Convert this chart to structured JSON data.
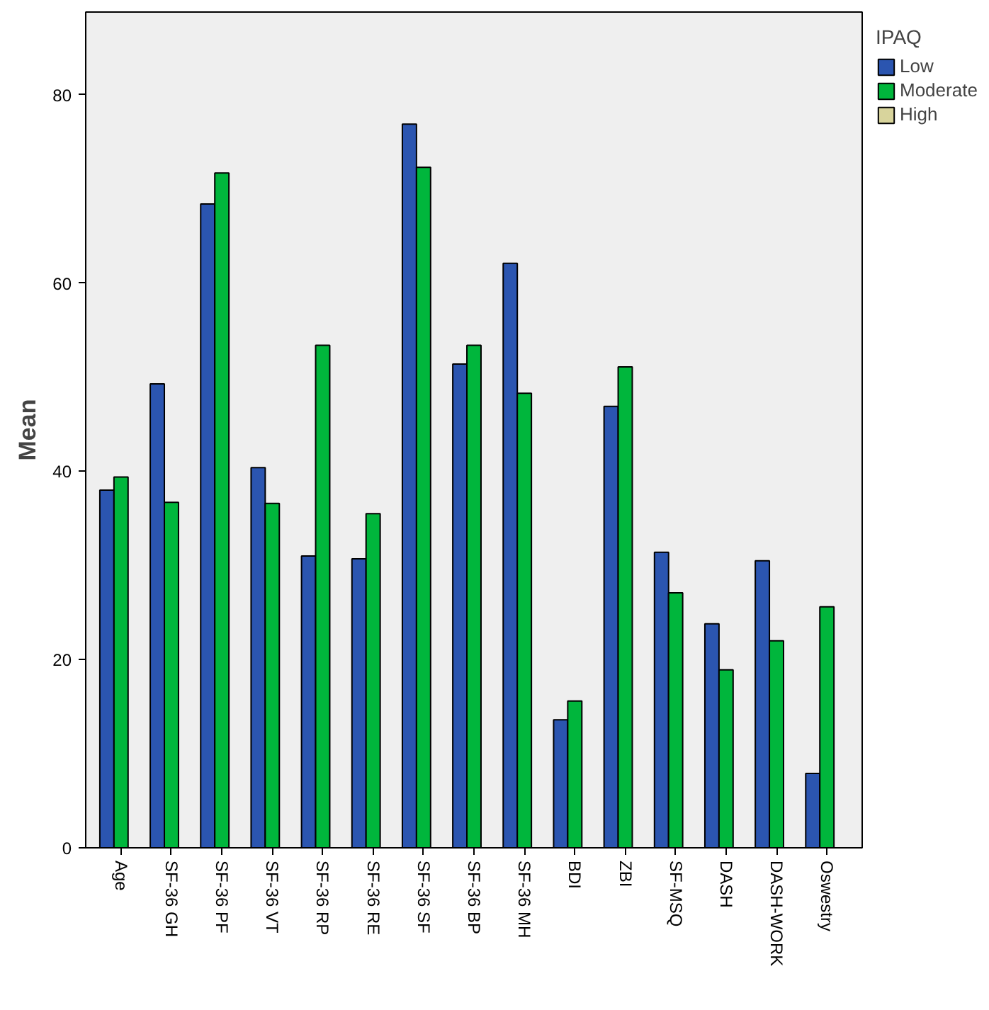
{
  "chart_data": {
    "type": "bar",
    "ylabel": "Mean",
    "legend_title": "IPAQ",
    "categories": [
      "Age",
      "SF-36 GH",
      "SF-36 PF",
      "SF-36 VT",
      "SF-36 RP",
      "SF-36 RE",
      "SF-36 SF",
      "SF-36 BP",
      "SF-36 MH",
      "BDI",
      "ZBI",
      "SF-MSQ",
      "DASH",
      "DASH-WORK",
      "Oswestry"
    ],
    "series": [
      {
        "name": "Low",
        "color": "#2b55b0",
        "values": [
          38.0,
          49.3,
          68.4,
          40.4,
          31.0,
          30.7,
          76.9,
          51.4,
          62.1,
          13.6,
          46.9,
          31.4,
          23.8,
          30.5,
          7.9
        ]
      },
      {
        "name": "Moderate",
        "color": "#00b63c",
        "values": [
          39.4,
          36.7,
          71.7,
          36.6,
          53.4,
          35.5,
          72.3,
          53.4,
          48.3,
          15.6,
          51.1,
          27.1,
          18.9,
          22.0,
          25.6
        ]
      },
      {
        "name": "High",
        "color": "#d8d49c",
        "values": [
          null,
          null,
          null,
          null,
          null,
          null,
          null,
          null,
          null,
          null,
          null,
          null,
          null,
          null,
          null
        ]
      }
    ],
    "ylim": [
      0,
      88.8
    ],
    "yticks": [
      0,
      20,
      40,
      60,
      80
    ],
    "grid": false,
    "legend": "right"
  }
}
